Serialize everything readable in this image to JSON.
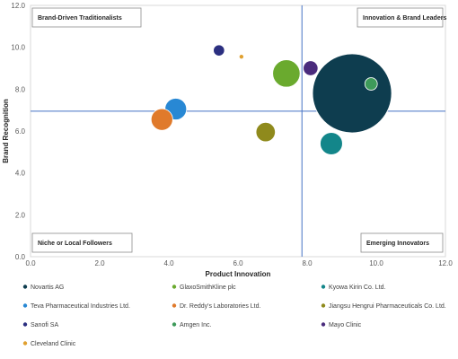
{
  "chart_data": {
    "type": "scatter",
    "variant": "bubble",
    "title": "",
    "xlabel": "Product  Innovation",
    "ylabel": "Brand  Recognition",
    "xlim": [
      0,
      12
    ],
    "ylim": [
      0,
      12
    ],
    "x_ticks": [
      "0.0",
      "2.0",
      "4.0",
      "6.0",
      "8.0",
      "10.0",
      "12.0"
    ],
    "y_ticks": [
      "0.0",
      "2.0",
      "4.0",
      "6.0",
      "8.0",
      "10.0",
      "12.0"
    ],
    "divider_x": 7.85,
    "divider_y": 6.95,
    "grid": false,
    "legend_position": "bottom",
    "quadrants": [
      {
        "label": "Brand-Driven Traditionalists",
        "corner": "top-left"
      },
      {
        "label": "Innovation & Brand Leaders",
        "corner": "top-right"
      },
      {
        "label": "Niche or Local Followers",
        "corner": "bottom-left"
      },
      {
        "label": "Emerging Innovators",
        "corner": "bottom-right"
      }
    ],
    "series": [
      {
        "name": "Novartis AG",
        "x": 9.3,
        "y": 7.8,
        "size": 100,
        "color": "#0e3d4f"
      },
      {
        "name": "GlaxoSmithKline plc",
        "x": 7.4,
        "y": 8.75,
        "size": 12,
        "color": "#6aaa2e"
      },
      {
        "name": "Kyowa Kirin Co. Ltd.",
        "x": 8.7,
        "y": 5.4,
        "size": 8,
        "color": "#13868a"
      },
      {
        "name": "Teva Pharmaceutical Industries Ltd.",
        "x": 4.2,
        "y": 7.05,
        "size": 7.5,
        "color": "#2888d4"
      },
      {
        "name": "Dr. Reddy's Laboratories Ltd.",
        "x": 3.8,
        "y": 6.55,
        "size": 7.5,
        "color": "#e07a2b"
      },
      {
        "name": "Jiangsu Hengrui Pharmaceuticals Co. Ltd.",
        "x": 6.8,
        "y": 5.95,
        "size": 6,
        "color": "#8f8a1c"
      },
      {
        "name": "Sanofi SA",
        "x": 5.45,
        "y": 9.85,
        "size": 2,
        "color": "#2b2f80"
      },
      {
        "name": "Amgen Inc.",
        "x": 9.85,
        "y": 8.25,
        "size": 2.5,
        "color": "#3e9a5a"
      },
      {
        "name": "Mayo Clinic",
        "x": 8.1,
        "y": 9.0,
        "size": 3.5,
        "color": "#4a2b7c"
      },
      {
        "name": "Cleveland Clinic",
        "x": 6.1,
        "y": 9.55,
        "size": 0.35,
        "color": "#e0a030"
      }
    ]
  }
}
